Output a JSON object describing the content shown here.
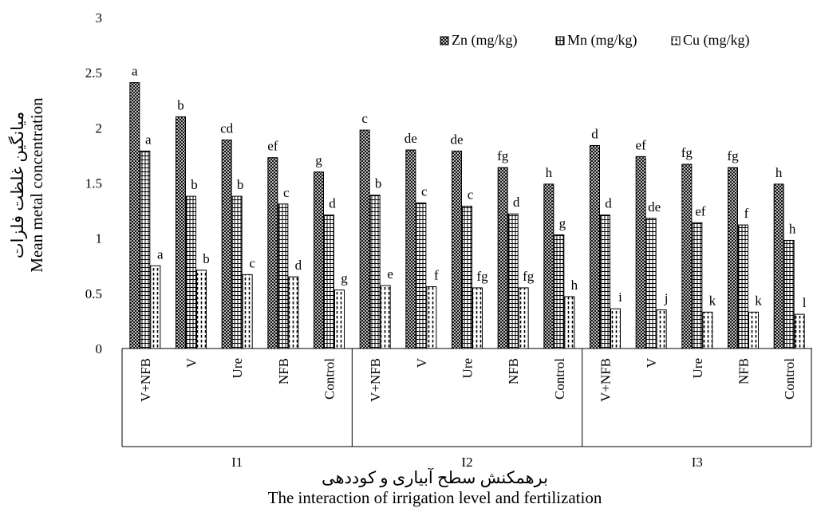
{
  "chart_data": {
    "type": "bar",
    "ylim": [
      0,
      3
    ],
    "yticks": [
      "0",
      "0.5",
      "1",
      "1.5",
      "2",
      "2.5",
      "3"
    ],
    "ylabel": "Mean metal concentration",
    "ylabel_fa": "میانگین غلظت فلزات",
    "xlabel": "The interaction of irrigation level and fertilization",
    "xlabel_fa": "برهمکنش سطح آبیاری و کوددهی",
    "legend_position": "top-right",
    "groups": [
      "I1",
      "I2",
      "I3"
    ],
    "treatments": [
      "V+NFB",
      "V",
      "Ure",
      "NFB",
      "Control"
    ],
    "categories": [
      "I1 V+NFB",
      "I1 V",
      "I1 Ure",
      "I1 NFB",
      "I1 Control",
      "I2 V+NFB",
      "I2 V",
      "I2 Ure",
      "I2 NFB",
      "I2 Control",
      "I3 V+NFB",
      "I3 V",
      "I3 Ure",
      "I3 NFB",
      "I3 Control"
    ],
    "series": [
      {
        "name": "Zn (mg/kg)",
        "pattern": "cross",
        "values": [
          2.41,
          2.1,
          1.89,
          1.73,
          1.6,
          1.98,
          1.8,
          1.79,
          1.64,
          1.49,
          1.84,
          1.74,
          1.67,
          1.64,
          1.49
        ],
        "labels": [
          "a",
          "b",
          "cd",
          "ef",
          "g",
          "c",
          "de",
          "de",
          "fg",
          "h",
          "d",
          "ef",
          "fg",
          "fg",
          "h"
        ]
      },
      {
        "name": "Mn (mg/kg)",
        "pattern": "grid",
        "values": [
          1.79,
          1.38,
          1.38,
          1.31,
          1.21,
          1.39,
          1.32,
          1.29,
          1.22,
          1.03,
          1.21,
          1.18,
          1.14,
          1.12,
          0.98
        ],
        "labels": [
          "a",
          "b",
          "b",
          "c",
          "d",
          "b",
          "c",
          "c",
          "d",
          "g",
          "d",
          "de",
          "ef",
          "f",
          "h"
        ]
      },
      {
        "name": "Cu (mg/kg)",
        "pattern": "dash",
        "values": [
          0.75,
          0.71,
          0.67,
          0.65,
          0.53,
          0.57,
          0.56,
          0.55,
          0.55,
          0.47,
          0.36,
          0.35,
          0.33,
          0.33,
          0.31
        ],
        "labels": [
          "a",
          "b",
          "c",
          "d",
          "g",
          "e",
          "f",
          "fg",
          "fg",
          "h",
          "i",
          "j",
          "k",
          "k",
          "l"
        ]
      }
    ]
  }
}
